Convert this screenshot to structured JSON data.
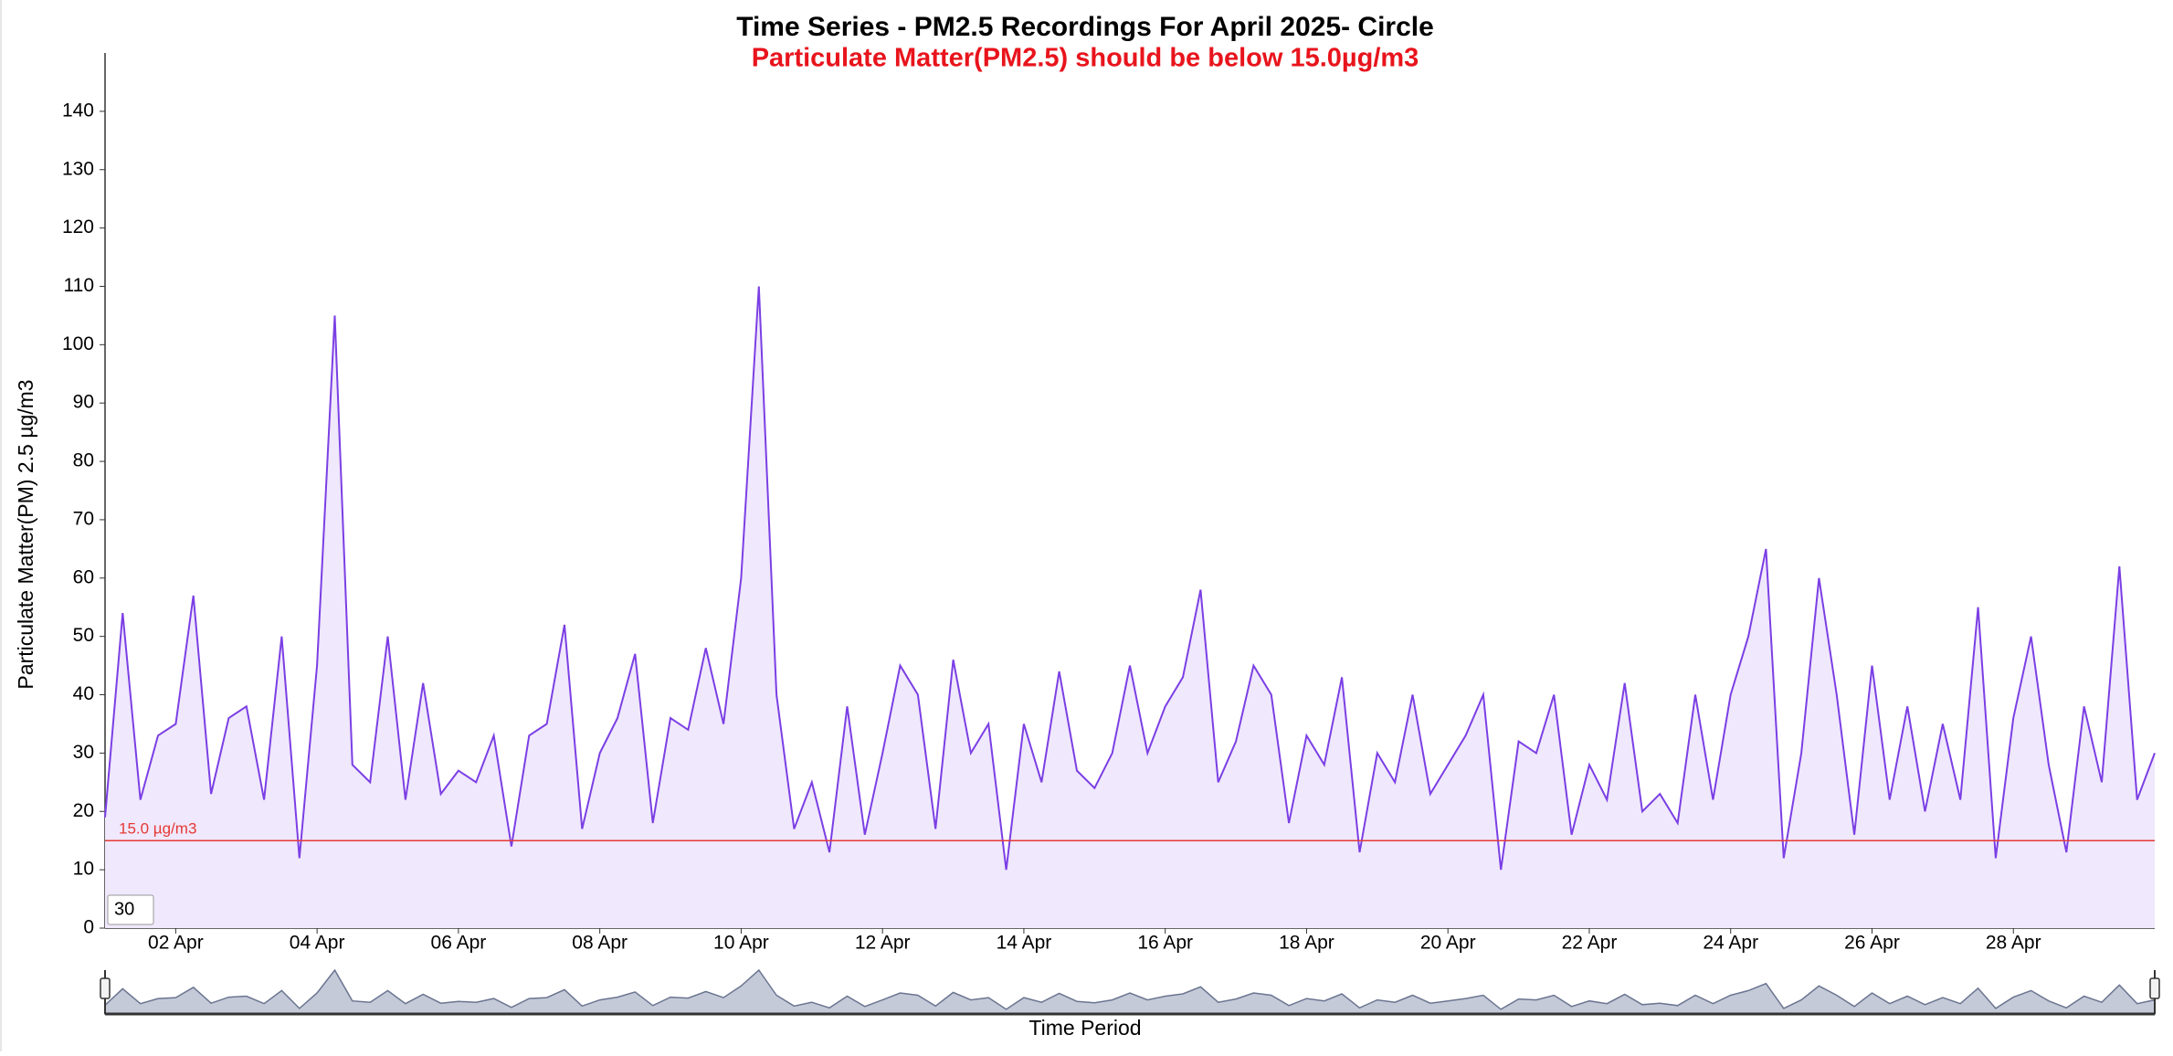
{
  "chart_data": {
    "type": "area",
    "title": "Time Series - PM2.5 Recordings For April 2025- Circle",
    "subtitle": "Particulate Matter(PM2.5) should be below 15.0µg/m3",
    "y_label": "Particulate Matter(PM) 2.5 µg/m3",
    "x_label": "Time Period",
    "range_input": "30",
    "threshold": {
      "value": 15,
      "label": "15.0 µg/m3",
      "color": "#e53935"
    },
    "xlim": [
      1,
      30
    ],
    "xticks": [
      {
        "value": 2,
        "label": "02 Apr"
      },
      {
        "value": 4,
        "label": "04 Apr"
      },
      {
        "value": 6,
        "label": "06 Apr"
      },
      {
        "value": 8,
        "label": "08 Apr"
      },
      {
        "value": 10,
        "label": "10 Apr"
      },
      {
        "value": 12,
        "label": "12 Apr"
      },
      {
        "value": 14,
        "label": "14 Apr"
      },
      {
        "value": 16,
        "label": "16 Apr"
      },
      {
        "value": 18,
        "label": "18 Apr"
      },
      {
        "value": 20,
        "label": "20 Apr"
      },
      {
        "value": 22,
        "label": "22 Apr"
      },
      {
        "value": 24,
        "label": "24 Apr"
      },
      {
        "value": 26,
        "label": "26 Apr"
      },
      {
        "value": 28,
        "label": "28 Apr"
      }
    ],
    "ylim": [
      0,
      150
    ],
    "yticks": [
      0,
      10,
      20,
      30,
      40,
      50,
      60,
      70,
      80,
      90,
      100,
      110,
      120,
      130,
      140
    ],
    "grid": false,
    "x": [
      1,
      1.25,
      1.5,
      1.75,
      2,
      2.25,
      2.5,
      2.75,
      3,
      3.25,
      3.5,
      3.75,
      4,
      4.25,
      4.5,
      4.75,
      5,
      5.25,
      5.5,
      5.75,
      6,
      6.25,
      6.5,
      6.75,
      7,
      7.25,
      7.5,
      7.75,
      8,
      8.25,
      8.5,
      8.75,
      9,
      9.25,
      9.5,
      9.75,
      10,
      10.25,
      10.5,
      10.75,
      11,
      11.25,
      11.5,
      11.75,
      12,
      12.25,
      12.5,
      12.75,
      13,
      13.25,
      13.5,
      13.75,
      14,
      14.25,
      14.5,
      14.75,
      15,
      15.25,
      15.5,
      15.75,
      16,
      16.25,
      16.5,
      16.75,
      17,
      17.25,
      17.5,
      17.75,
      18,
      18.25,
      18.5,
      18.75,
      19,
      19.25,
      19.5,
      19.75,
      20,
      20.25,
      20.5,
      20.75,
      21,
      21.25,
      21.5,
      21.75,
      22,
      22.25,
      22.5,
      22.75,
      23,
      23.25,
      23.5,
      23.75,
      24,
      24.25,
      24.5,
      24.75,
      25,
      25.25,
      25.5,
      25.75,
      26,
      26.25,
      26.5,
      26.75,
      27,
      27.25,
      27.5,
      27.75,
      28,
      28.25,
      28.5,
      28.75,
      29,
      29.25,
      29.5,
      29.75,
      30
    ],
    "series": [
      {
        "name": "PM2.5",
        "color": "#7b3fe4",
        "fill": "#f0e8fc",
        "values": [
          19,
          54,
          22,
          33,
          35,
          57,
          23,
          36,
          38,
          22,
          50,
          12,
          45,
          105,
          28,
          25,
          50,
          22,
          42,
          23,
          27,
          25,
          33,
          14,
          33,
          35,
          52,
          17,
          30,
          36,
          47,
          18,
          36,
          34,
          48,
          35,
          60,
          110,
          40,
          17,
          25,
          13,
          38,
          16,
          30,
          45,
          40,
          17,
          46,
          30,
          35,
          10,
          35,
          25,
          44,
          27,
          24,
          30,
          45,
          30,
          38,
          43,
          58,
          25,
          32,
          45,
          40,
          18,
          33,
          28,
          43,
          13,
          30,
          25,
          40,
          23,
          28,
          33,
          40,
          10,
          32,
          30,
          40,
          16,
          28,
          22,
          42,
          20,
          23,
          18,
          40,
          22,
          40,
          50,
          65,
          12,
          30,
          60,
          40,
          16,
          45,
          22,
          38,
          20,
          35,
          22,
          55,
          12,
          36,
          50,
          28,
          13,
          38,
          25,
          62,
          22,
          30
        ]
      }
    ]
  }
}
